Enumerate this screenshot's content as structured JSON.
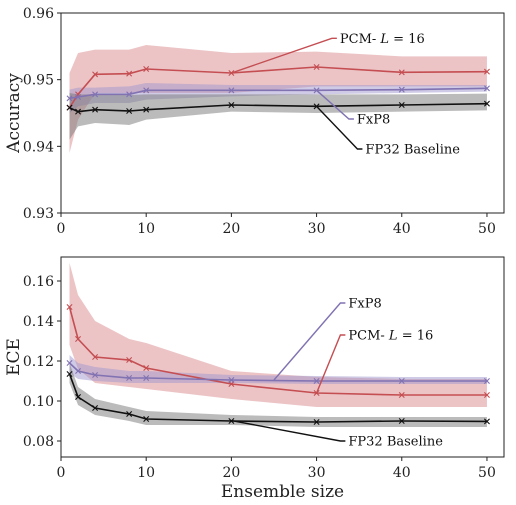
{
  "chart_data": [
    {
      "type": "line",
      "x": [
        1,
        2,
        4,
        8,
        10,
        20,
        30,
        40,
        50
      ],
      "xlim": [
        0,
        52
      ],
      "ylim": [
        0.93,
        0.96
      ],
      "yticks": [
        0.93,
        0.94,
        0.95,
        0.96
      ],
      "xticks": [
        0,
        10,
        20,
        30,
        40,
        50
      ],
      "ylabel": "Accuracy",
      "xlabel": "",
      "series": [
        {
          "name": "PCM- L = 16",
          "color": "#c44e52",
          "band_color": "#d98a8e",
          "values": [
            0.9458,
            0.9478,
            0.9508,
            0.9509,
            0.9516,
            0.951,
            0.9519,
            0.9511,
            0.9512
          ],
          "lower": [
            0.939,
            0.944,
            0.948,
            0.948,
            0.948,
            0.948,
            0.949,
            0.949,
            0.949
          ],
          "upper": [
            0.951,
            0.954,
            0.9545,
            0.9545,
            0.9552,
            0.954,
            0.9542,
            0.9535,
            0.9535
          ]
        },
        {
          "name": "FxP8",
          "color": "#8172b2",
          "band_color": "#9f95cc",
          "values": [
            0.9472,
            0.9474,
            0.9478,
            0.9478,
            0.9484,
            0.9484,
            0.9484,
            0.9485,
            0.9487
          ],
          "lower": [
            0.945,
            0.946,
            0.9465,
            0.9465,
            0.947,
            0.9475,
            0.9478,
            0.948,
            0.9482
          ],
          "upper": [
            0.9485,
            0.9488,
            0.9488,
            0.949,
            0.9495,
            0.9492,
            0.9492,
            0.9492,
            0.9492
          ]
        },
        {
          "name": "FP32 Baseline",
          "color": "#111111",
          "band_color": "#777777",
          "values": [
            0.9458,
            0.9452,
            0.9455,
            0.9453,
            0.9455,
            0.9462,
            0.946,
            0.9462,
            0.9464
          ],
          "lower": [
            0.941,
            0.943,
            0.9435,
            0.9432,
            0.944,
            0.9452,
            0.945,
            0.9452,
            0.9454
          ],
          "upper": [
            0.948,
            0.9478,
            0.9478,
            0.9477,
            0.9478,
            0.9478,
            0.9478,
            0.9478,
            0.9479
          ]
        }
      ],
      "annotations": [
        {
          "series": 0,
          "prefix": "PCM- ",
          "math": "L",
          "suffix": " = 16",
          "text": "PCM- L = 16",
          "point_x": 20,
          "point_y": 0.951,
          "label_x": 32.5,
          "label_y": 0.9562
        },
        {
          "series": 1,
          "text": "FxP8",
          "point_x": 30,
          "point_y": 0.9484,
          "label_x": 34.5,
          "label_y": 0.9441
        },
        {
          "series": 2,
          "text": "FP32 Baseline",
          "point_x": 30,
          "point_y": 0.946,
          "label_x": 35.5,
          "label_y": 0.9396
        }
      ]
    },
    {
      "type": "line",
      "x": [
        1,
        2,
        4,
        8,
        10,
        20,
        30,
        40,
        50
      ],
      "xlim": [
        0,
        52
      ],
      "ylim": [
        0.072,
        0.172
      ],
      "yticks": [
        0.08,
        0.1,
        0.12,
        0.14,
        0.16
      ],
      "xticks": [
        0,
        10,
        20,
        30,
        40,
        50
      ],
      "ylabel": "ECE",
      "xlabel": "Ensemble size",
      "series": [
        {
          "name": "PCM- L = 16",
          "color": "#c44e52",
          "band_color": "#d98a8e",
          "values": [
            0.147,
            0.131,
            0.122,
            0.1205,
            0.1165,
            0.1085,
            0.104,
            0.103,
            0.103
          ],
          "lower": [
            0.128,
            0.116,
            0.109,
            0.107,
            0.106,
            0.101,
            0.097,
            0.097,
            0.097
          ],
          "upper": [
            0.169,
            0.153,
            0.14,
            0.131,
            0.129,
            0.115,
            0.112,
            0.111,
            0.111
          ]
        },
        {
          "name": "FxP8",
          "color": "#8172b2",
          "band_color": "#9f95cc",
          "values": [
            0.119,
            0.115,
            0.113,
            0.1115,
            0.1115,
            0.1105,
            0.11,
            0.11,
            0.11
          ],
          "lower": [
            0.114,
            0.111,
            0.11,
            0.109,
            0.109,
            0.109,
            0.1085,
            0.1085,
            0.1085
          ],
          "upper": [
            0.123,
            0.119,
            0.117,
            0.115,
            0.115,
            0.113,
            0.1125,
            0.112,
            0.112
          ]
        },
        {
          "name": "FP32 Baseline",
          "color": "#111111",
          "band_color": "#777777",
          "values": [
            0.1135,
            0.102,
            0.0965,
            0.0935,
            0.091,
            0.09,
            0.0895,
            0.09,
            0.0898
          ],
          "lower": [
            0.109,
            0.098,
            0.093,
            0.09,
            0.088,
            0.088,
            0.087,
            0.087,
            0.087
          ],
          "upper": [
            0.119,
            0.107,
            0.101,
            0.097,
            0.095,
            0.093,
            0.092,
            0.092,
            0.092
          ]
        }
      ],
      "annotations": [
        {
          "series": 1,
          "text": "FxP8",
          "point_x": 25,
          "point_y": 0.1105,
          "label_x": 33.5,
          "label_y": 0.149
        },
        {
          "series": 0,
          "prefix": "PCM- ",
          "math": "L",
          "suffix": " = 16",
          "text": "PCM- L = 16",
          "point_x": 30,
          "point_y": 0.104,
          "label_x": 33.5,
          "label_y": 0.133
        },
        {
          "series": 2,
          "text": "FP32 Baseline",
          "point_x": 20,
          "point_y": 0.0902,
          "label_x": 33.5,
          "label_y": 0.08
        }
      ]
    }
  ]
}
